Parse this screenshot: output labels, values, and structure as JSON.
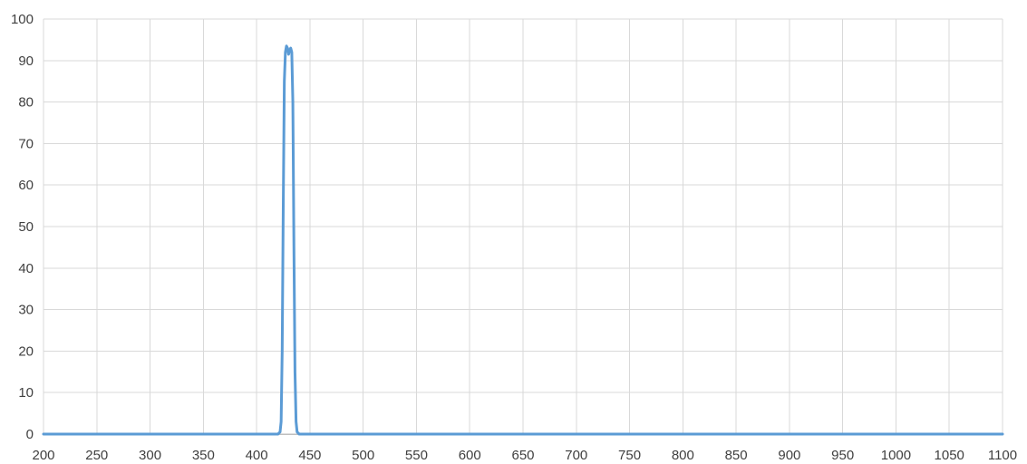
{
  "chart_data": {
    "type": "line",
    "title": "",
    "xlabel": "",
    "ylabel": "",
    "xlim": [
      200,
      1100
    ],
    "ylim": [
      0,
      100
    ],
    "x_ticks": [
      200,
      250,
      300,
      350,
      400,
      450,
      500,
      550,
      600,
      650,
      700,
      750,
      800,
      850,
      900,
      950,
      1000,
      1050,
      1100
    ],
    "y_ticks": [
      0,
      10,
      20,
      30,
      40,
      50,
      60,
      70,
      80,
      90,
      100
    ],
    "grid": true,
    "legend": "none",
    "series": [
      {
        "color": "#5b9bd5",
        "points": [
          [
            200,
            0
          ],
          [
            420,
            0
          ],
          [
            422,
            0.5
          ],
          [
            423,
            3
          ],
          [
            424,
            20
          ],
          [
            425,
            55
          ],
          [
            426,
            85
          ],
          [
            427,
            92
          ],
          [
            428,
            93.5
          ],
          [
            429,
            93
          ],
          [
            430,
            91.5
          ],
          [
            431,
            92.5
          ],
          [
            432,
            93
          ],
          [
            433,
            92
          ],
          [
            434,
            80
          ],
          [
            435,
            45
          ],
          [
            436,
            15
          ],
          [
            437,
            3
          ],
          [
            438,
            0.5
          ],
          [
            440,
            0
          ],
          [
            1100,
            0
          ]
        ]
      }
    ]
  }
}
